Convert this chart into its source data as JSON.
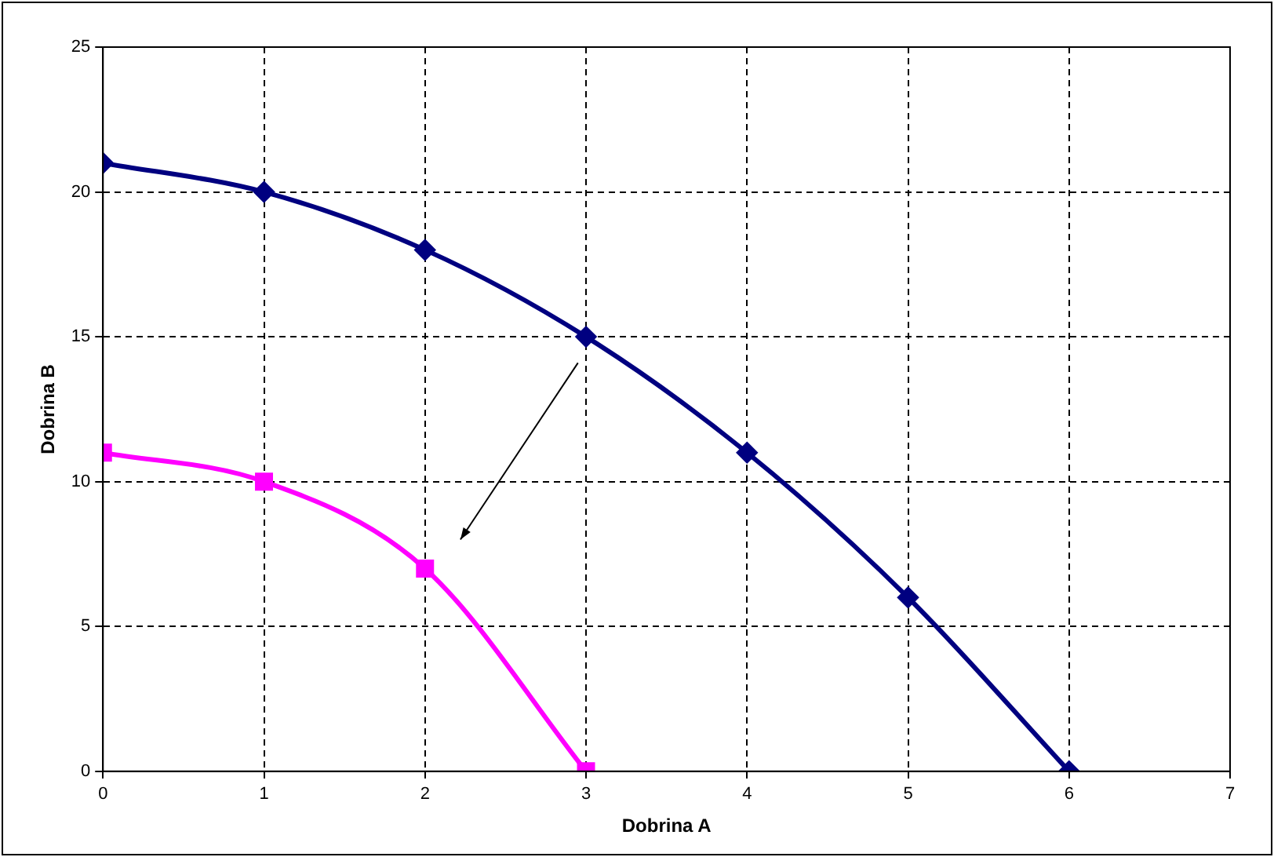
{
  "chart_data": {
    "type": "line",
    "xlabel": "Dobrina A",
    "ylabel": "Dobrina B",
    "xlim": [
      0,
      7
    ],
    "xticks": [
      0,
      1,
      2,
      3,
      4,
      5,
      6,
      7
    ],
    "ylim": [
      0,
      25
    ],
    "yticks": [
      0,
      5,
      10,
      15,
      20,
      25
    ],
    "grid": true,
    "line_style": "solid",
    "series": [
      {
        "color": "#000080",
        "marker": "diamond",
        "x": [
          0,
          1,
          2,
          3,
          4,
          5,
          6
        ],
        "values": [
          21,
          20,
          18,
          15,
          11,
          6,
          0
        ]
      },
      {
        "color": "#ff00ff",
        "marker": "square",
        "x": [
          0,
          1,
          2,
          3
        ],
        "values": [
          11,
          10,
          7,
          0
        ]
      }
    ]
  }
}
